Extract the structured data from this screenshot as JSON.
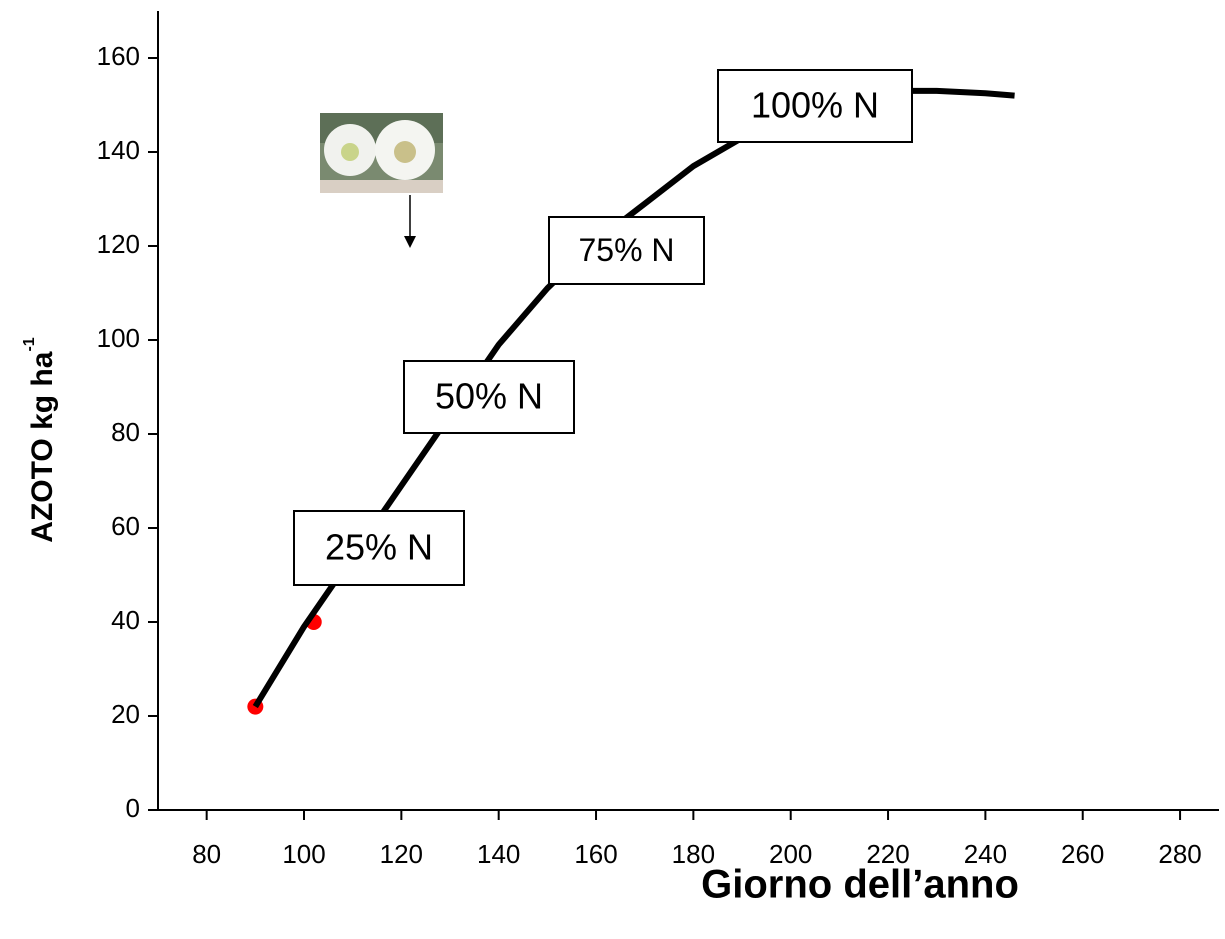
{
  "chart_data": {
    "type": "line",
    "x_label": "Giorno dell’anno",
    "y_label": "AZOTO kg ha",
    "y_label_superscript": "-1",
    "x": [
      90,
      100,
      110,
      120,
      130,
      140,
      150,
      160,
      170,
      180,
      190,
      200,
      210,
      220,
      230,
      240,
      246
    ],
    "series": [
      {
        "color": "#000000",
        "values": [
          22,
          39,
          54,
          69,
          84,
          99,
          111,
          121,
          129,
          137,
          143,
          148,
          151.5,
          153,
          153,
          152.5,
          152
        ]
      }
    ],
    "points": {
      "x": [
        90,
        102
      ],
      "values": [
        22,
        40
      ],
      "color": "#ff0000"
    },
    "annotations": [
      "25% N",
      "50% N",
      "75% N",
      "100% N"
    ],
    "xlim": [
      70,
      288
    ],
    "xticks": [
      80,
      100,
      120,
      140,
      160,
      180,
      200,
      220,
      240,
      260,
      280
    ],
    "ylim": [
      0,
      170
    ],
    "yticks": [
      0,
      20,
      40,
      60,
      80,
      100,
      120,
      140,
      160
    ],
    "grid": false
  }
}
